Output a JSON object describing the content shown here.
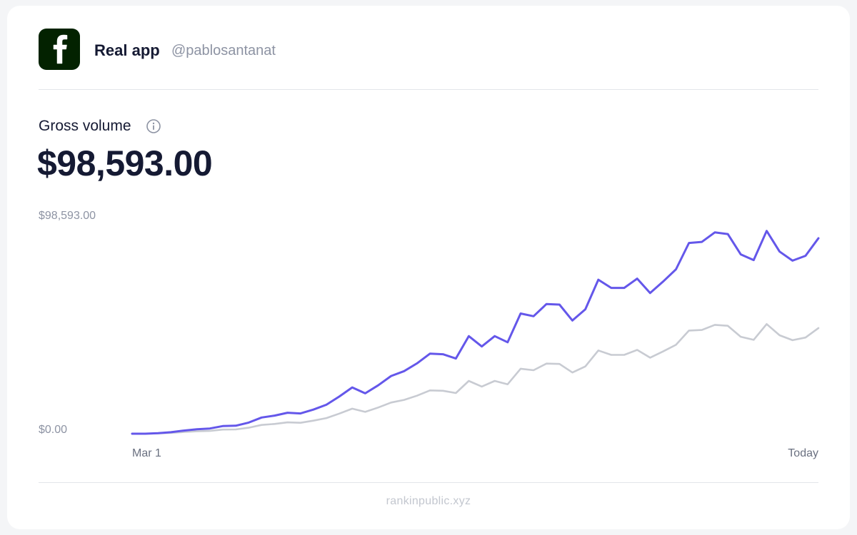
{
  "header": {
    "app_name": "Real app",
    "handle": "@pablosantanat",
    "icon": "facebook-f-icon",
    "icon_color": "#032200"
  },
  "metric": {
    "label": "Gross volume",
    "info_icon": "info-icon",
    "value": "$98,593.00"
  },
  "footer": {
    "text": "rankinpublic.xyz"
  },
  "chart_data": {
    "type": "line",
    "y_max_label": "$98,593.00",
    "y_min_label": "$0.00",
    "x_start_label": "Mar 1",
    "x_end_label": "Today",
    "ylim": [
      0,
      98593
    ],
    "grid": false,
    "legend": "none",
    "series": [
      {
        "color": "#6457ea",
        "values": [
          0,
          0,
          230,
          720,
          1480,
          2140,
          2460,
          3610,
          3780,
          5270,
          7660,
          8560,
          9910,
          9580,
          11400,
          13700,
          17600,
          21900,
          19100,
          22900,
          27300,
          29600,
          33300,
          37900,
          37600,
          35600,
          46200,
          41300,
          46200,
          43300,
          56900,
          55600,
          61400,
          61100,
          53600,
          58900,
          72900,
          69000,
          69000,
          73400,
          66600,
          72000,
          77800,
          90300,
          90800,
          95300,
          94500,
          84900,
          82200,
          96000,
          86200,
          81900,
          84200,
          92500
        ]
      },
      {
        "color": "#c8cbd2",
        "values": [
          0,
          0,
          120,
          390,
          800,
          1160,
          1330,
          1950,
          2040,
          2850,
          4140,
          4630,
          5360,
          5180,
          6170,
          7400,
          9520,
          11840,
          10330,
          12380,
          14760,
          16000,
          18000,
          20490,
          20330,
          19250,
          24970,
          22330,
          24980,
          23410,
          30770,
          30060,
          33200,
          33030,
          28980,
          31850,
          39420,
          37300,
          37300,
          39690,
          36010,
          38930,
          42060,
          48820,
          49090,
          51520,
          51090,
          45900,
          44440,
          51900,
          46600,
          44270,
          45520,
          50010
        ]
      }
    ]
  }
}
